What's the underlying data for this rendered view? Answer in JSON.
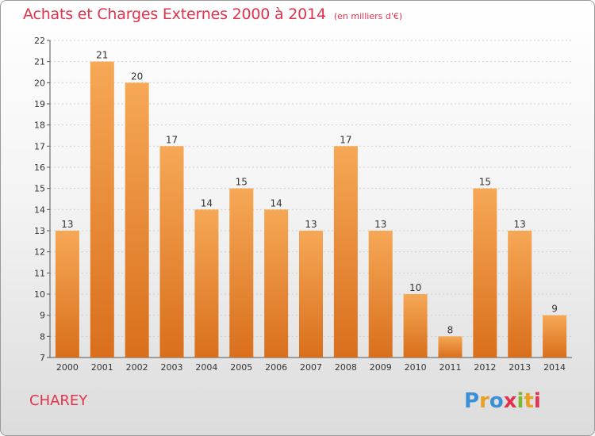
{
  "header": {
    "title": "Achats et Charges Externes 2000 à 2014",
    "subtitle": "(en milliers d'€)"
  },
  "footer": {
    "place": "CHAREY",
    "logo": "Proxiti"
  },
  "colors": {
    "title": "#e0334e",
    "bar_light": "#f6a856",
    "bar_dark": "#d96f1c",
    "grid": "#cfcfcf"
  },
  "chart_data": {
    "type": "bar",
    "categories": [
      "2000",
      "2001",
      "2002",
      "2003",
      "2004",
      "2005",
      "2006",
      "2007",
      "2008",
      "2009",
      "2010",
      "2011",
      "2012",
      "2013",
      "2014"
    ],
    "values": [
      13,
      21,
      20,
      17,
      14,
      15,
      14,
      13,
      17,
      13,
      10,
      8,
      15,
      13,
      9
    ],
    "ylim": [
      7,
      22
    ],
    "yticks": [
      7,
      8,
      9,
      10,
      11,
      12,
      13,
      14,
      15,
      16,
      17,
      18,
      19,
      20,
      21,
      22
    ],
    "grid": true,
    "data_labels": true
  }
}
